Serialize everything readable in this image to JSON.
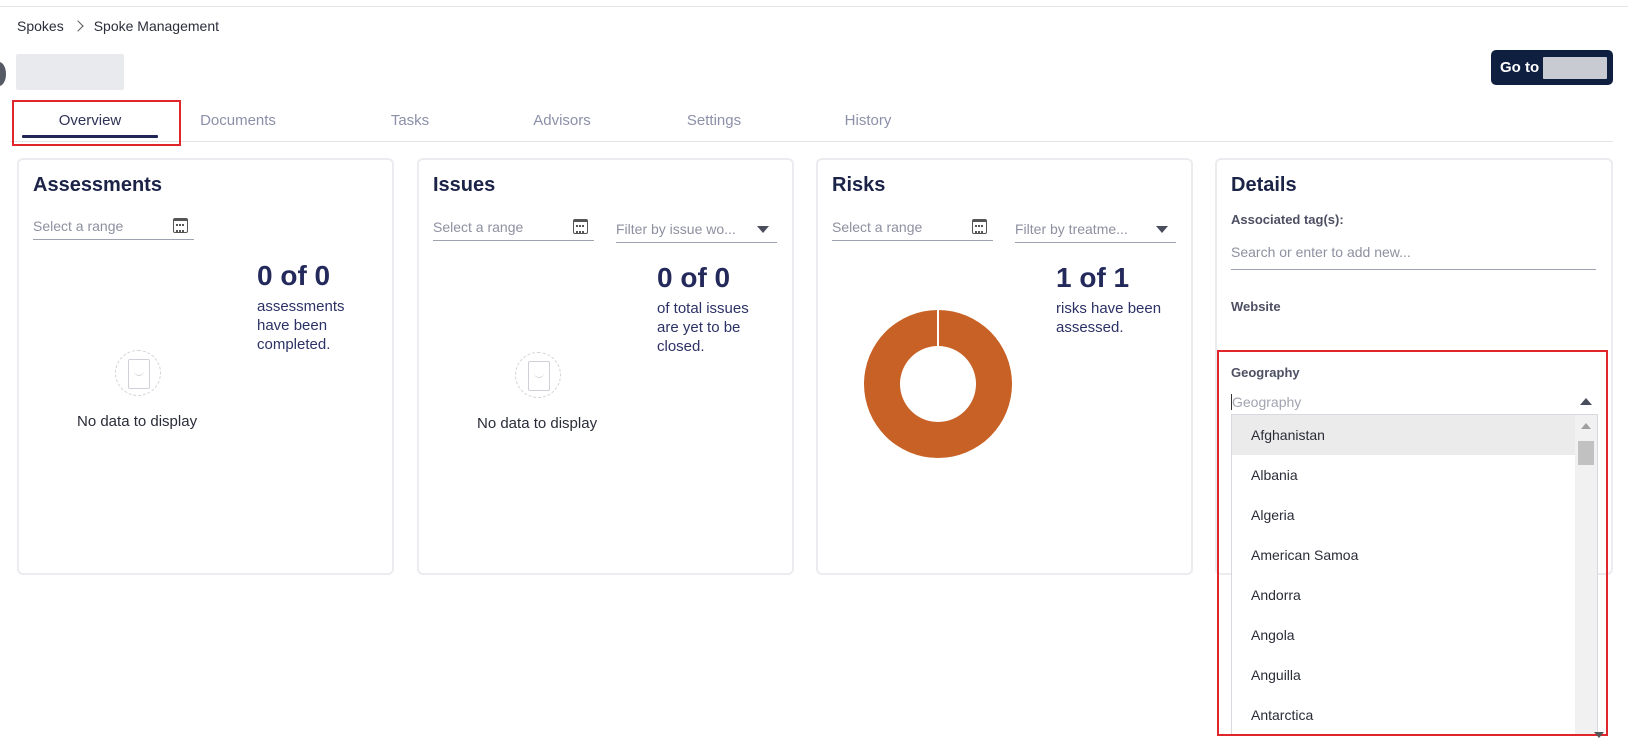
{
  "breadcrumb": {
    "root": "Spokes",
    "current": "Spoke Management"
  },
  "header": {
    "goto_label": "Go to"
  },
  "tabs": [
    {
      "label": "Overview",
      "active": true
    },
    {
      "label": "Documents",
      "active": false
    },
    {
      "label": "Tasks",
      "active": false
    },
    {
      "label": "Advisors",
      "active": false
    },
    {
      "label": "Settings",
      "active": false
    },
    {
      "label": "History",
      "active": false
    }
  ],
  "assessments": {
    "title": "Assessments",
    "range_placeholder": "Select a range",
    "stat": "0 of 0",
    "stat_desc": "assessments have been completed.",
    "empty_text": "No data to display"
  },
  "issues": {
    "title": "Issues",
    "range_placeholder": "Select a range",
    "filter_placeholder": "Filter by issue wo...",
    "stat": "0 of 0",
    "stat_desc": "of total issues are yet to be closed.",
    "empty_text": "No data to display"
  },
  "risks": {
    "title": "Risks",
    "range_placeholder": "Select a range",
    "filter_placeholder": "Filter by treatme...",
    "stat": "1 of 1",
    "stat_desc": "risks have been assessed.",
    "donut_color": "#c86126",
    "donut_fraction": 1
  },
  "details": {
    "title": "Details",
    "tags_label": "Associated tag(s):",
    "tags_placeholder": "Search or enter to add new...",
    "website_label": "Website",
    "geography_label": "Geography",
    "geography_placeholder": "Geography",
    "geography_options": [
      "Afghanistan",
      "Albania",
      "Algeria",
      "American Samoa",
      "Andorra",
      "Angola",
      "Anguilla",
      "Antarctica"
    ]
  }
}
